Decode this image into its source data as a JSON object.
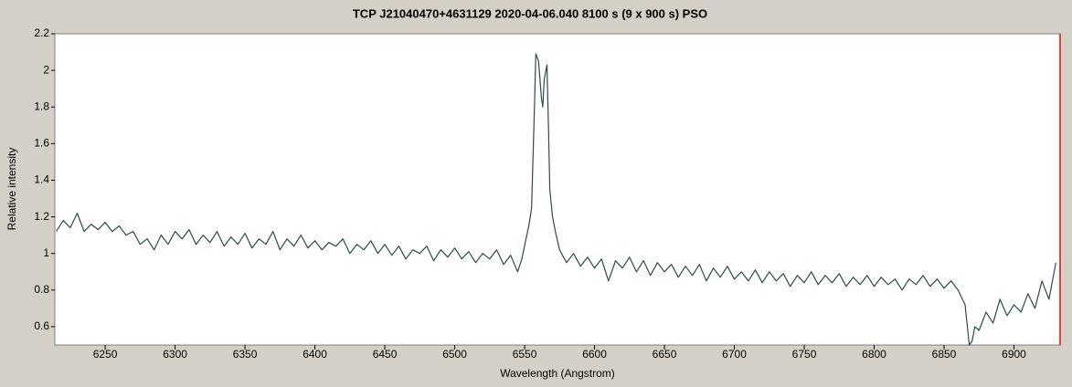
{
  "chart_data": {
    "type": "line",
    "title": "TCP J21040470+4631129   2020-04-06.040   8100 s (9 x 900 s)   PSO",
    "x_label": "Wavelength (Angstrom)",
    "y_label": "Relative intensity",
    "xlim": [
      6214,
      6933
    ],
    "ylim": [
      0.5,
      2.2
    ],
    "xticks": [
      6250,
      6300,
      6350,
      6400,
      6450,
      6500,
      6550,
      6600,
      6650,
      6700,
      6750,
      6800,
      6850,
      6900
    ],
    "yticks": [
      0.6,
      0.8,
      1,
      1.2,
      1.4,
      1.6,
      1.8,
      2,
      2.2
    ],
    "series": [
      {
        "color": "#2f4a4a",
        "x": [
          6215,
          6220,
          6225,
          6230,
          6235,
          6240,
          6245,
          6250,
          6255,
          6260,
          6265,
          6270,
          6275,
          6280,
          6285,
          6290,
          6295,
          6300,
          6305,
          6310,
          6315,
          6320,
          6325,
          6330,
          6335,
          6340,
          6345,
          6350,
          6355,
          6360,
          6365,
          6370,
          6375,
          6380,
          6385,
          6390,
          6395,
          6400,
          6405,
          6410,
          6415,
          6420,
          6425,
          6430,
          6435,
          6440,
          6445,
          6450,
          6455,
          6460,
          6465,
          6470,
          6475,
          6480,
          6485,
          6490,
          6495,
          6500,
          6505,
          6510,
          6515,
          6520,
          6525,
          6530,
          6535,
          6540,
          6545,
          6548,
          6551,
          6553,
          6555,
          6557,
          6558,
          6560,
          6562,
          6563,
          6564,
          6566,
          6567,
          6568,
          6570,
          6572,
          6575,
          6580,
          6585,
          6590,
          6595,
          6600,
          6605,
          6610,
          6615,
          6620,
          6625,
          6630,
          6635,
          6640,
          6645,
          6650,
          6655,
          6660,
          6665,
          6670,
          6675,
          6680,
          6685,
          6690,
          6695,
          6700,
          6705,
          6710,
          6715,
          6720,
          6725,
          6730,
          6735,
          6740,
          6745,
          6750,
          6755,
          6760,
          6765,
          6770,
          6775,
          6780,
          6785,
          6790,
          6795,
          6800,
          6805,
          6810,
          6815,
          6820,
          6825,
          6830,
          6835,
          6840,
          6845,
          6850,
          6855,
          6860,
          6865,
          6868,
          6870,
          6872,
          6875,
          6880,
          6885,
          6890,
          6895,
          6900,
          6905,
          6910,
          6915,
          6920,
          6925,
          6930
        ],
        "values": [
          1.12,
          1.18,
          1.14,
          1.22,
          1.12,
          1.16,
          1.13,
          1.17,
          1.12,
          1.15,
          1.1,
          1.12,
          1.05,
          1.08,
          1.02,
          1.1,
          1.05,
          1.12,
          1.08,
          1.13,
          1.05,
          1.1,
          1.06,
          1.12,
          1.04,
          1.09,
          1.05,
          1.11,
          1.03,
          1.08,
          1.05,
          1.12,
          1.02,
          1.08,
          1.04,
          1.1,
          1.03,
          1.07,
          1.02,
          1.06,
          1.04,
          1.08,
          1.0,
          1.05,
          1.02,
          1.07,
          1.0,
          1.05,
          0.99,
          1.04,
          0.97,
          1.02,
          1.0,
          1.04,
          0.96,
          1.02,
          0.98,
          1.03,
          0.97,
          1.01,
          0.95,
          1.0,
          0.97,
          1.02,
          0.94,
          0.99,
          0.9,
          0.97,
          1.08,
          1.15,
          1.25,
          1.8,
          2.09,
          2.05,
          1.85,
          1.8,
          1.95,
          2.03,
          1.7,
          1.35,
          1.2,
          1.12,
          1.02,
          0.95,
          1.0,
          0.93,
          0.98,
          0.92,
          0.97,
          0.85,
          0.96,
          0.92,
          0.98,
          0.9,
          0.96,
          0.88,
          0.95,
          0.9,
          0.94,
          0.87,
          0.93,
          0.88,
          0.94,
          0.85,
          0.92,
          0.87,
          0.93,
          0.86,
          0.9,
          0.85,
          0.91,
          0.84,
          0.9,
          0.85,
          0.89,
          0.82,
          0.88,
          0.84,
          0.9,
          0.83,
          0.88,
          0.84,
          0.89,
          0.82,
          0.87,
          0.83,
          0.88,
          0.82,
          0.87,
          0.83,
          0.86,
          0.8,
          0.86,
          0.83,
          0.88,
          0.82,
          0.86,
          0.81,
          0.85,
          0.8,
          0.72,
          0.5,
          0.52,
          0.6,
          0.58,
          0.68,
          0.62,
          0.75,
          0.66,
          0.72,
          0.68,
          0.78,
          0.7,
          0.85,
          0.75,
          0.95
        ]
      }
    ]
  }
}
